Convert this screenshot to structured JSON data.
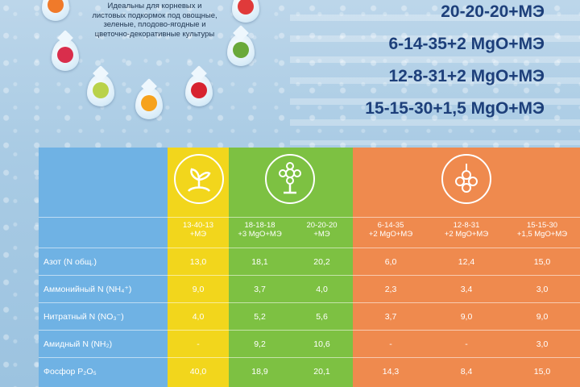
{
  "intro_text": "Идеальны  для корневых и листовых подкормок под овощные, зеленые, плодово-ягодные и цветочно-декоративные культуры",
  "formulas": [
    "20-20-20+МЭ",
    "6-14-35+2 MgO+МЭ",
    "12-8-31+2 MgO+МЭ",
    "15-15-30+1,5 MgO+МЭ"
  ],
  "columns": [
    {
      "line1": "13-40-13",
      "line2": "+МЭ"
    },
    {
      "line1": "18-18-18",
      "line2": "+3 MgO+МЭ"
    },
    {
      "line1": "20-20-20",
      "line2": "+МЭ"
    },
    {
      "line1": "6-14-35",
      "line2": "+2 MgO+МЭ"
    },
    {
      "line1": "12-8-31",
      "line2": "+2 MgO+МЭ"
    },
    {
      "line1": "15-15-30",
      "line2": "+1,5 MgO+МЭ"
    }
  ],
  "rows": [
    {
      "label": "Азот (N общ.)",
      "values": [
        "13,0",
        "18,1",
        "20,2",
        "6,0",
        "12,4",
        "15,0"
      ]
    },
    {
      "label": "Аммонийный N  (NH₄⁺)",
      "values": [
        "9,0",
        "3,7",
        "4,0",
        "2,3",
        "3,4",
        "3,0"
      ]
    },
    {
      "label": "Нитратный N (NO₃⁻)",
      "values": [
        "4,0",
        "5,2",
        "5,6",
        "3,7",
        "9,0",
        "9,0"
      ]
    },
    {
      "label": "Амидный N (NH₂)",
      "values": [
        "-",
        "9,2",
        "10,6",
        "-",
        "-",
        "3,0"
      ]
    },
    {
      "label": "Фосфор P₂O₅",
      "values": [
        "40,0",
        "18,9",
        "20,1",
        "14,3",
        "8,4",
        "15,0"
      ]
    }
  ],
  "colors": {
    "yellow": "#f2d61c",
    "green": "#7dc142",
    "orange": "#ef8a4e",
    "blue": "#6fb2e4"
  }
}
